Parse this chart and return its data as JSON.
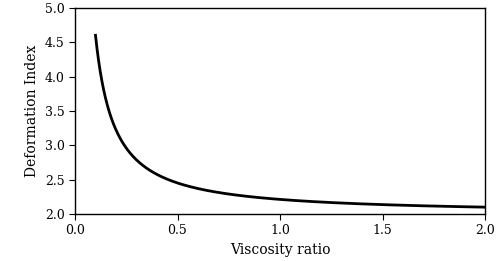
{
  "xlabel": "Viscosity ratio",
  "ylabel": "Deformation Index",
  "xlim": [
    0,
    2
  ],
  "ylim": [
    2,
    5
  ],
  "xticks": [
    0,
    0.5,
    1,
    1.5,
    2
  ],
  "yticks": [
    2,
    2.5,
    3,
    3.5,
    4,
    4.5,
    5
  ],
  "x_start": 0.1,
  "x_end": 2.0,
  "curve_color": "#000000",
  "curve_linewidth": 2.0,
  "background_color": "#ffffff",
  "font_size_labels": 10,
  "font_size_ticks": 9,
  "k": 0.213,
  "n": 1.093
}
